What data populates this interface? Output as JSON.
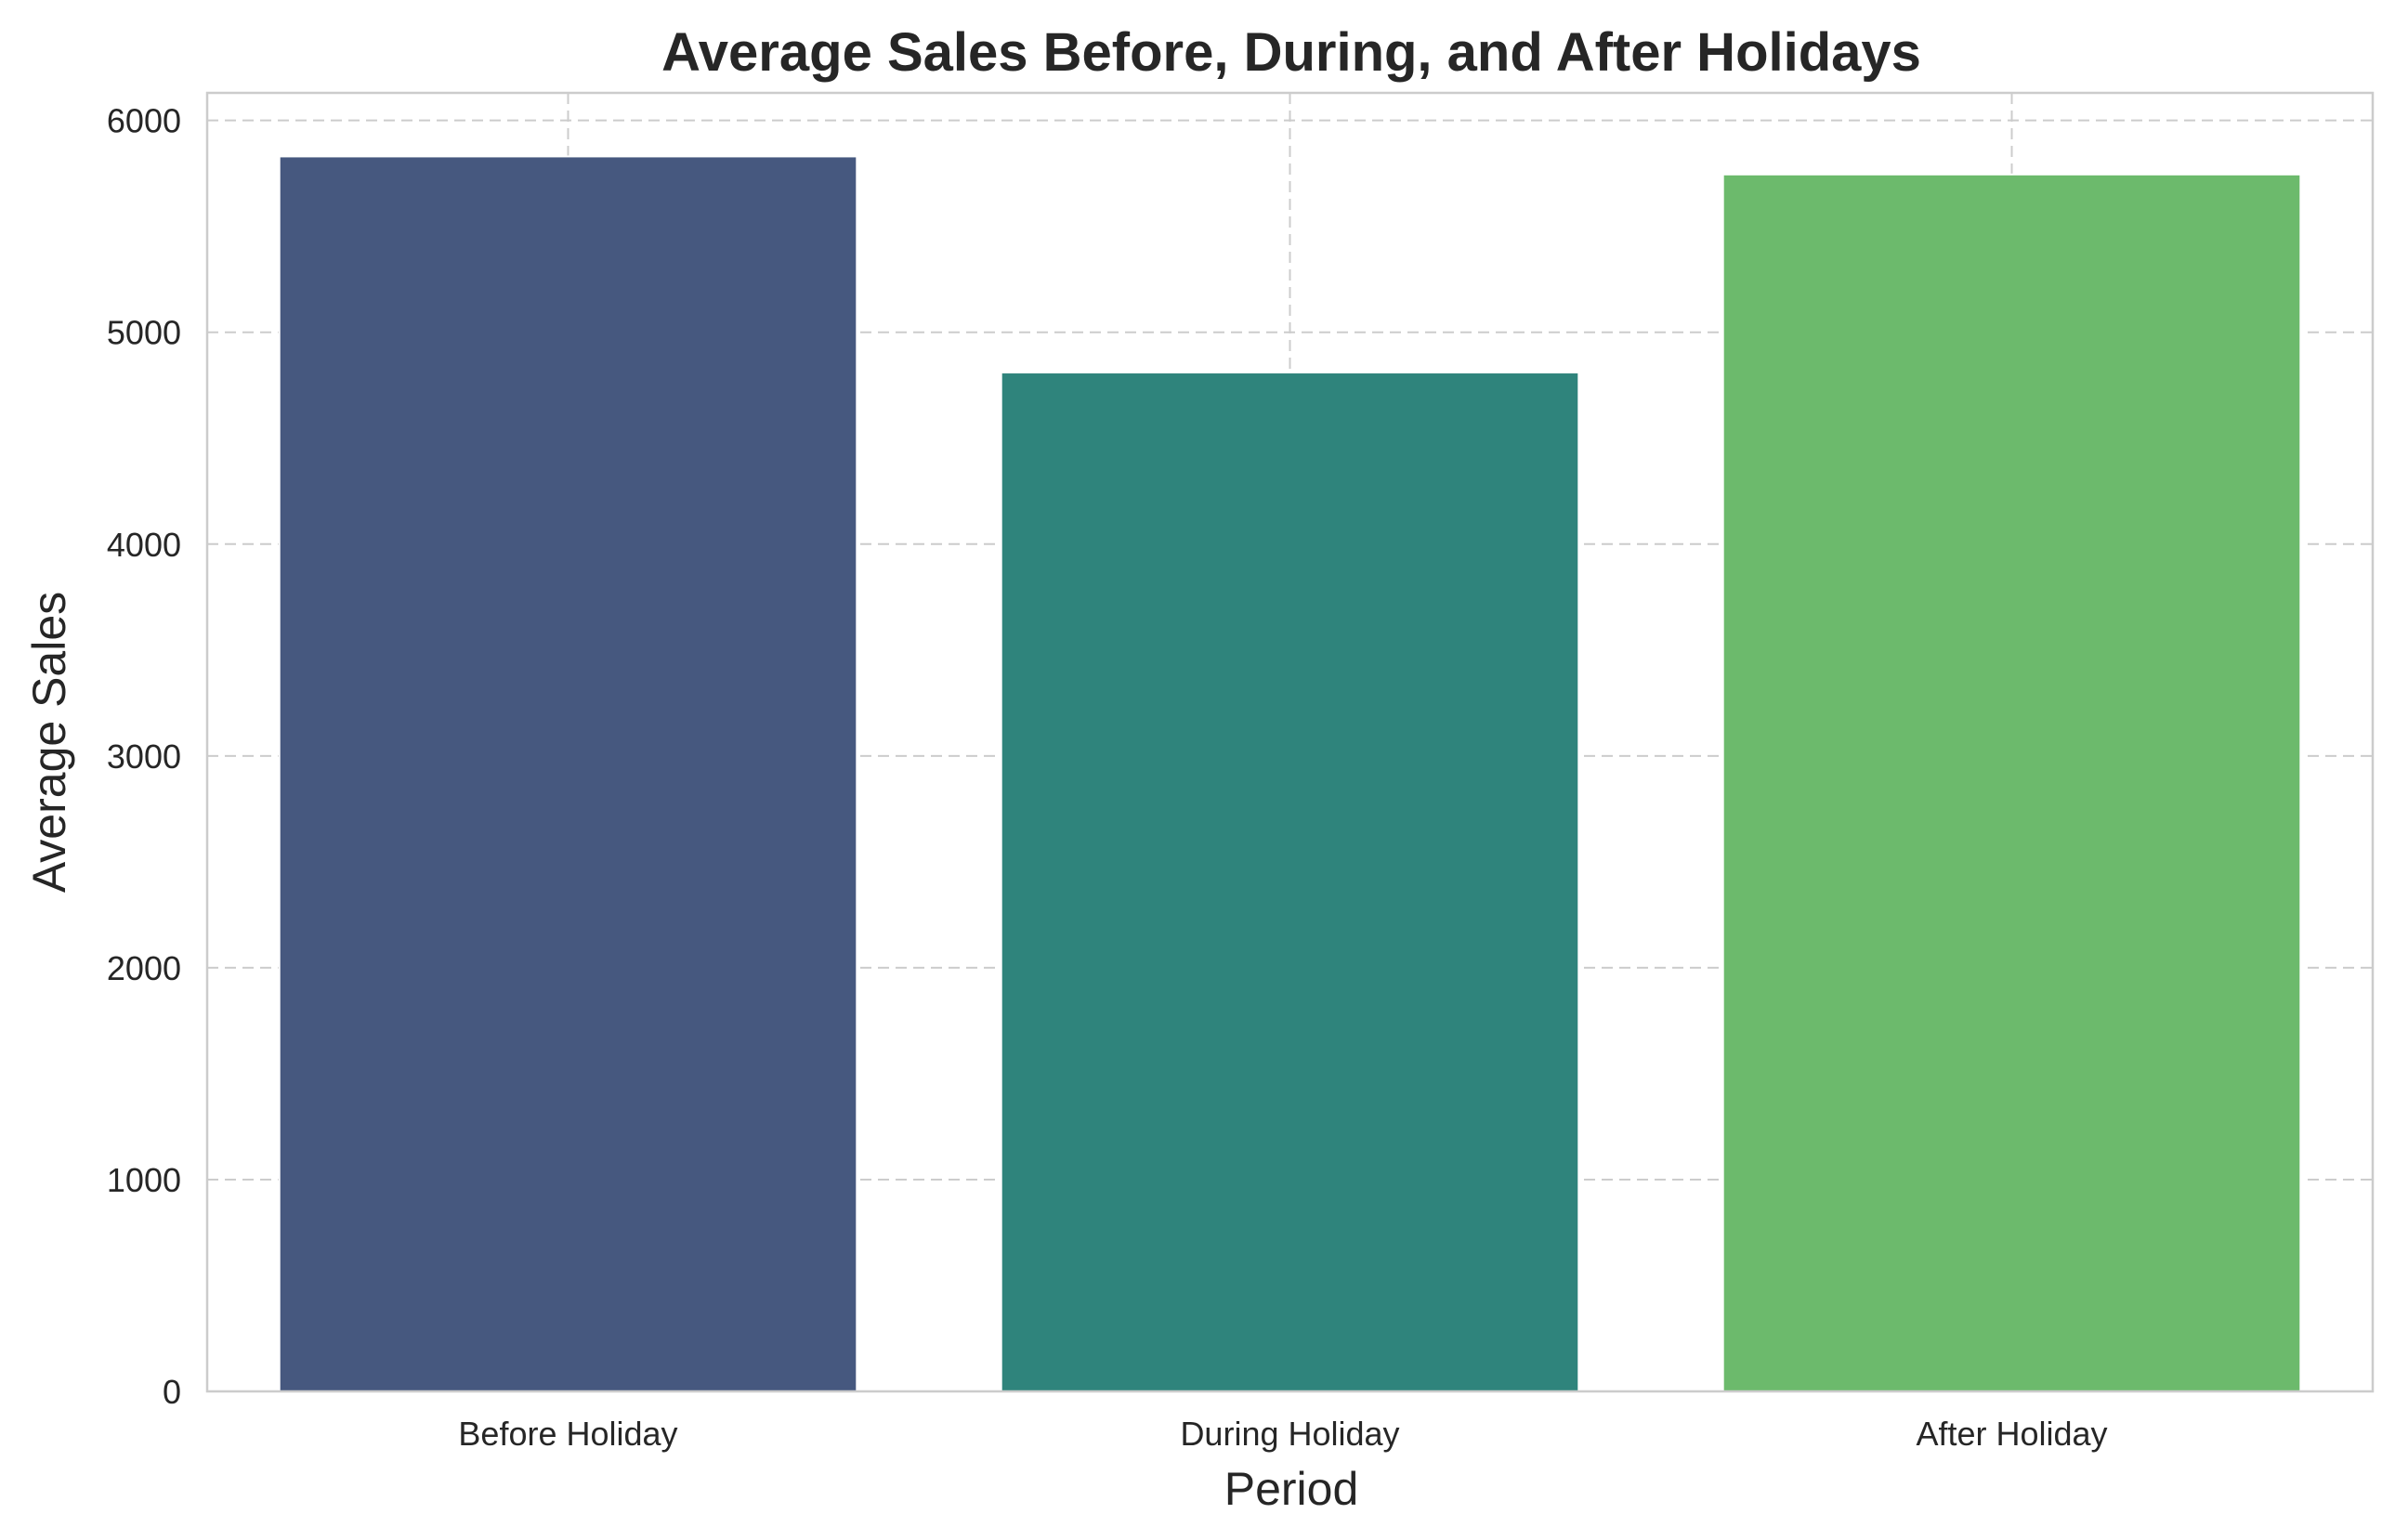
{
  "chart_data": {
    "type": "bar",
    "title": "Average Sales Before, During, and After Holidays",
    "xlabel": "Period",
    "ylabel": "Average Sales",
    "categories": [
      "Before Holiday",
      "During Holiday",
      "After Holiday"
    ],
    "values": [
      5830,
      4810,
      5745
    ],
    "colors": [
      "#46587f",
      "#2f847c",
      "#6cba6c"
    ],
    "ylim": [
      0,
      6130
    ],
    "yticks": [
      0,
      1000,
      2000,
      3000,
      4000,
      5000,
      6000
    ],
    "grid": true,
    "legend": "none"
  }
}
